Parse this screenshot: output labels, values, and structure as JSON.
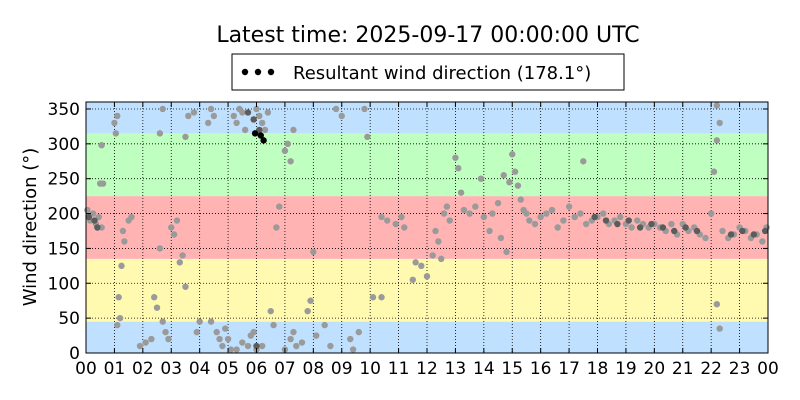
{
  "chart_data": {
    "type": "scatter",
    "title": "Latest time: 2025-09-17 00:00:00 UTC",
    "xlabel": "",
    "ylabel": "Wind direction (°)",
    "x_ticks": [
      "00",
      "01",
      "02",
      "03",
      "04",
      "05",
      "06",
      "07",
      "08",
      "09",
      "10",
      "11",
      "12",
      "13",
      "14",
      "15",
      "16",
      "17",
      "18",
      "19",
      "20",
      "21",
      "22",
      "23",
      "00"
    ],
    "xlim": [
      0,
      24
    ],
    "ylim": [
      0,
      360
    ],
    "y_ticks": [
      0,
      50,
      100,
      150,
      200,
      250,
      300,
      350
    ],
    "grid": true,
    "legend": {
      "position": "top-center",
      "entries": [
        {
          "label": "Resultant wind direction (178.1°)",
          "marker": "dots",
          "color": "#000000"
        }
      ]
    },
    "bands": [
      {
        "from": 0,
        "to": 45,
        "color": "#bfe0ff"
      },
      {
        "from": 45,
        "to": 135,
        "color": "#fffaaf"
      },
      {
        "from": 135,
        "to": 225,
        "color": "#ffb3b3"
      },
      {
        "from": 225,
        "to": 315,
        "color": "#bfffbf"
      },
      {
        "from": 315,
        "to": 360,
        "color": "#bfe0ff"
      }
    ],
    "series": [
      {
        "values": [
          [
            0.05,
            205
          ],
          [
            0.15,
            190
          ],
          [
            0.25,
            200
          ],
          [
            0.35,
            185
          ],
          [
            0.45,
            195
          ],
          [
            0.55,
            180
          ],
          [
            0.5,
            243
          ],
          [
            0.6,
            243
          ],
          [
            0.55,
            298
          ],
          [
            1.0,
            330
          ],
          [
            1.05,
            315
          ],
          [
            1.1,
            340
          ],
          [
            1.1,
            40
          ],
          [
            1.15,
            80
          ],
          [
            1.2,
            50
          ],
          [
            1.25,
            125
          ],
          [
            1.3,
            175
          ],
          [
            1.35,
            160
          ],
          [
            1.5,
            190
          ],
          [
            1.6,
            195
          ],
          [
            1.9,
            10
          ],
          [
            2.1,
            15
          ],
          [
            2.3,
            20
          ],
          [
            2.4,
            80
          ],
          [
            2.5,
            65
          ],
          [
            2.6,
            150
          ],
          [
            2.7,
            45
          ],
          [
            2.8,
            30
          ],
          [
            2.9,
            20
          ],
          [
            2.7,
            350
          ],
          [
            2.6,
            315
          ],
          [
            3.0,
            180
          ],
          [
            3.1,
            170
          ],
          [
            3.2,
            190
          ],
          [
            3.3,
            130
          ],
          [
            3.4,
            140
          ],
          [
            3.5,
            95
          ],
          [
            3.5,
            310
          ],
          [
            3.6,
            340
          ],
          [
            3.8,
            345
          ],
          [
            3.9,
            30
          ],
          [
            4.0,
            45
          ],
          [
            4.3,
            330
          ],
          [
            4.4,
            350
          ],
          [
            4.5,
            340
          ],
          [
            4.4,
            45
          ],
          [
            4.6,
            30
          ],
          [
            4.7,
            20
          ],
          [
            4.8,
            10
          ],
          [
            4.9,
            35
          ],
          [
            5.0,
            20
          ],
          [
            5.1,
            5
          ],
          [
            5.2,
            340
          ],
          [
            5.3,
            330
          ],
          [
            5.4,
            350
          ],
          [
            5.5,
            345
          ],
          [
            5.6,
            320
          ],
          [
            5.3,
            5
          ],
          [
            5.5,
            15
          ],
          [
            5.7,
            10
          ],
          [
            5.8,
            25
          ],
          [
            5.9,
            30
          ],
          [
            6.0,
            350
          ],
          [
            6.1,
            340
          ],
          [
            6.2,
            330
          ],
          [
            6.3,
            320
          ],
          [
            6.4,
            345
          ],
          [
            6.0,
            5
          ],
          [
            6.2,
            10
          ],
          [
            6.5,
            60
          ],
          [
            6.6,
            40
          ],
          [
            6.7,
            180
          ],
          [
            6.8,
            210
          ],
          [
            7.0,
            290
          ],
          [
            7.1,
            300
          ],
          [
            7.2,
            275
          ],
          [
            7.3,
            320
          ],
          [
            7.0,
            5
          ],
          [
            7.2,
            20
          ],
          [
            7.3,
            30
          ],
          [
            7.4,
            10
          ],
          [
            7.6,
            15
          ],
          [
            7.8,
            60
          ],
          [
            7.9,
            75
          ],
          [
            8.0,
            145
          ],
          [
            8.1,
            25
          ],
          [
            8.4,
            40
          ],
          [
            8.6,
            10
          ],
          [
            8.8,
            350
          ],
          [
            9.0,
            340
          ],
          [
            9.3,
            20
          ],
          [
            9.4,
            5
          ],
          [
            9.6,
            30
          ],
          [
            9.8,
            350
          ],
          [
            9.9,
            310
          ],
          [
            10.1,
            80
          ],
          [
            10.4,
            80
          ],
          [
            10.4,
            195
          ],
          [
            10.6,
            190
          ],
          [
            10.9,
            185
          ],
          [
            11.1,
            195
          ],
          [
            11.2,
            180
          ],
          [
            11.5,
            105
          ],
          [
            11.6,
            130
          ],
          [
            11.8,
            125
          ],
          [
            12.0,
            110
          ],
          [
            12.2,
            140
          ],
          [
            12.3,
            175
          ],
          [
            12.4,
            160
          ],
          [
            12.5,
            135
          ],
          [
            12.6,
            200
          ],
          [
            12.7,
            210
          ],
          [
            12.8,
            190
          ],
          [
            13.0,
            280
          ],
          [
            13.1,
            265
          ],
          [
            13.2,
            230
          ],
          [
            13.3,
            205
          ],
          [
            13.5,
            200
          ],
          [
            13.7,
            210
          ],
          [
            13.9,
            250
          ],
          [
            14.0,
            195
          ],
          [
            14.2,
            175
          ],
          [
            14.3,
            200
          ],
          [
            14.5,
            215
          ],
          [
            14.6,
            165
          ],
          [
            14.7,
            255
          ],
          [
            14.8,
            145
          ],
          [
            14.9,
            245
          ],
          [
            15.0,
            285
          ],
          [
            15.1,
            260
          ],
          [
            15.2,
            240
          ],
          [
            15.3,
            220
          ],
          [
            15.4,
            205
          ],
          [
            15.5,
            200
          ],
          [
            15.6,
            190
          ],
          [
            15.8,
            185
          ],
          [
            16.0,
            195
          ],
          [
            16.2,
            200
          ],
          [
            16.4,
            205
          ],
          [
            16.6,
            180
          ],
          [
            16.8,
            190
          ],
          [
            17.0,
            210
          ],
          [
            17.2,
            195
          ],
          [
            17.4,
            200
          ],
          [
            17.5,
            275
          ],
          [
            17.6,
            185
          ],
          [
            17.8,
            190
          ],
          [
            18.0,
            195
          ],
          [
            18.2,
            200
          ],
          [
            18.4,
            185
          ],
          [
            18.6,
            190
          ],
          [
            18.8,
            195
          ],
          [
            19.0,
            185
          ],
          [
            19.2,
            180
          ],
          [
            19.4,
            190
          ],
          [
            19.6,
            185
          ],
          [
            19.8,
            180
          ],
          [
            20.0,
            185
          ],
          [
            20.2,
            180
          ],
          [
            20.4,
            175
          ],
          [
            20.6,
            185
          ],
          [
            20.8,
            170
          ],
          [
            21.0,
            185
          ],
          [
            21.2,
            175
          ],
          [
            21.4,
            180
          ],
          [
            21.6,
            170
          ],
          [
            21.8,
            165
          ],
          [
            22.0,
            200
          ],
          [
            22.1,
            260
          ],
          [
            22.2,
            305
          ],
          [
            22.3,
            330
          ],
          [
            22.2,
            355
          ],
          [
            22.2,
            70
          ],
          [
            22.3,
            35
          ],
          [
            22.4,
            175
          ],
          [
            22.6,
            165
          ],
          [
            22.8,
            170
          ],
          [
            23.0,
            180
          ],
          [
            23.2,
            175
          ],
          [
            23.4,
            165
          ],
          [
            23.6,
            170
          ],
          [
            23.8,
            160
          ],
          [
            23.95,
            180
          ]
        ]
      },
      {
        "values": [
          [
            0.1,
            195
          ],
          [
            0.3,
            190
          ],
          [
            0.4,
            180
          ],
          [
            5.7,
            345
          ],
          [
            5.9,
            335
          ],
          [
            6.0,
            10
          ],
          [
            6.1,
            320
          ],
          [
            17.9,
            195
          ],
          [
            18.3,
            190
          ],
          [
            18.7,
            185
          ],
          [
            19.1,
            190
          ],
          [
            19.5,
            180
          ],
          [
            19.9,
            185
          ],
          [
            20.3,
            180
          ],
          [
            20.7,
            175
          ],
          [
            21.1,
            180
          ],
          [
            21.5,
            175
          ],
          [
            22.7,
            170
          ],
          [
            23.1,
            175
          ],
          [
            23.5,
            170
          ],
          [
            23.9,
            175
          ]
        ]
      },
      {
        "values": [
          [
            6.25,
            305
          ],
          [
            5.95,
            315
          ],
          [
            6.15,
            312
          ]
        ]
      }
    ]
  }
}
